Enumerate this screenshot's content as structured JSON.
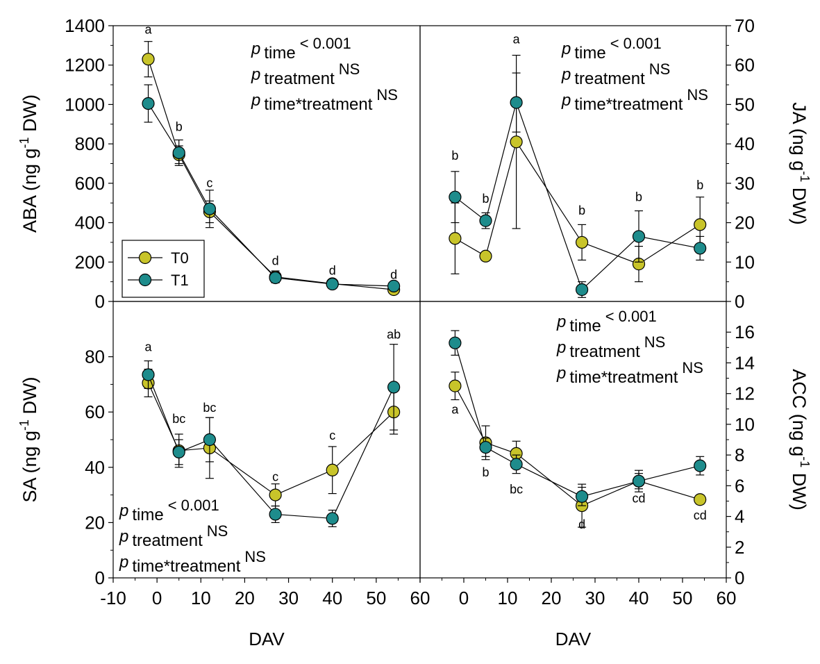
{
  "colors": {
    "t0_fill": "#C8C42A",
    "t1_fill": "#1E8C8C",
    "stroke": "#000000"
  },
  "legend": {
    "t0": "T0",
    "t1": "T1"
  },
  "x_axis": {
    "label": "DAV"
  },
  "chart_data": [
    {
      "type": "line",
      "position": "top-left",
      "ylabel": "ABA (ng g-1 DW)",
      "ylabel_parts": {
        "before": "ABA (ng g",
        "sup": "-1",
        "after": " DW)"
      },
      "xlim": [
        -10,
        60
      ],
      "ylim": [
        0,
        1400
      ],
      "xticks": [
        -10,
        0,
        10,
        20,
        30,
        40,
        50,
        60
      ],
      "yticks": [
        0,
        200,
        400,
        600,
        800,
        1000,
        1200,
        1400
      ],
      "series": [
        {
          "name": "T0",
          "x": [
            -2,
            5,
            12,
            27,
            40,
            54
          ],
          "y": [
            1230,
            745,
            455,
            125,
            90,
            60
          ],
          "err": [
            90,
            45,
            55,
            30,
            15,
            10
          ]
        },
        {
          "name": "T1",
          "x": [
            -2,
            5,
            12,
            27,
            40,
            54
          ],
          "y": [
            1005,
            755,
            470,
            120,
            88,
            78
          ],
          "err": [
            95,
            65,
            95,
            25,
            10,
            10
          ]
        }
      ],
      "letters": [
        {
          "x": -2,
          "y": 1360,
          "text": "a"
        },
        {
          "x": 5,
          "y": 865,
          "text": "b"
        },
        {
          "x": 12,
          "y": 580,
          "text": "c"
        },
        {
          "x": 27,
          "y": 185,
          "text": "d"
        },
        {
          "x": 40,
          "y": 135,
          "text": "d"
        },
        {
          "x": 54,
          "y": 115,
          "text": "d"
        }
      ],
      "stats": {
        "position": "top-right",
        "lines": [
          {
            "sub": "time",
            "sup": "< 0.001"
          },
          {
            "sub": "treatment",
            "sup": "NS"
          },
          {
            "sub": "time*treatment",
            "sup": "NS"
          }
        ]
      }
    },
    {
      "type": "line",
      "position": "top-right",
      "ylabel": "JA (ng g-1 DW)",
      "ylabel_parts": {
        "before": "JA (ng g",
        "sup": "-1",
        "after": " DW)"
      },
      "xlim": [
        -10,
        60
      ],
      "ylim": [
        0,
        70
      ],
      "xticks": [
        -10,
        0,
        10,
        20,
        30,
        40,
        50,
        60
      ],
      "yticks": [
        0,
        10,
        20,
        30,
        40,
        50,
        60,
        70
      ],
      "series": [
        {
          "name": "T0",
          "x": [
            -2,
            5,
            12,
            27,
            40,
            54
          ],
          "y": [
            16,
            11.5,
            40.5,
            15,
            9.5,
            19.5
          ],
          "err": [
            9,
            1,
            22,
            4.5,
            4.5,
            7
          ]
        },
        {
          "name": "T1",
          "x": [
            -2,
            5,
            12,
            27,
            40,
            54
          ],
          "y": [
            26.5,
            20.5,
            50.5,
            3,
            16.5,
            13.5
          ],
          "err": [
            6.5,
            2,
            7.5,
            2,
            6.5,
            3
          ]
        }
      ],
      "letters": [
        {
          "x": -2,
          "y": 36,
          "text": "b"
        },
        {
          "x": 5,
          "y": 25,
          "text": "b"
        },
        {
          "x": 12,
          "y": 65.5,
          "text": "a"
        },
        {
          "x": 27,
          "y": 22,
          "text": "b"
        },
        {
          "x": 40,
          "y": 25.5,
          "text": "b"
        },
        {
          "x": 54,
          "y": 28.5,
          "text": "b"
        }
      ],
      "stats": {
        "position": "top-right",
        "lines": [
          {
            "sub": "time",
            "sup": "< 0.001"
          },
          {
            "sub": "treatment",
            "sup": "NS"
          },
          {
            "sub": "time*treatment",
            "sup": "NS"
          }
        ]
      }
    },
    {
      "type": "line",
      "position": "bottom-left",
      "ylabel": "SA (ng g-1 DW)",
      "ylabel_parts": {
        "before": "SA (ng g",
        "sup": "-1",
        "after": " DW)"
      },
      "xlim": [
        -10,
        60
      ],
      "ylim": [
        0,
        100
      ],
      "xticks": [
        -10,
        0,
        10,
        20,
        30,
        40,
        50,
        60
      ],
      "yticks": [
        0,
        20,
        40,
        60,
        80
      ],
      "series": [
        {
          "name": "T0",
          "x": [
            -2,
            5,
            12,
            27,
            40,
            54
          ],
          "y": [
            70.5,
            46,
            47,
            30,
            39,
            60
          ],
          "err": [
            5,
            6,
            11,
            4,
            8.5,
            8
          ]
        },
        {
          "name": "T1",
          "x": [
            -2,
            5,
            12,
            27,
            40,
            54
          ],
          "y": [
            73.5,
            45.5,
            50,
            23,
            21.5,
            69
          ],
          "err": [
            5,
            4.5,
            8,
            3,
            3,
            15.5
          ]
        }
      ],
      "letters": [
        {
          "x": -2,
          "y": 82,
          "text": "a"
        },
        {
          "x": 5,
          "y": 56,
          "text": "bc"
        },
        {
          "x": 12,
          "y": 60,
          "text": "bc"
        },
        {
          "x": 27,
          "y": 35,
          "text": "c"
        },
        {
          "x": 40,
          "y": 50,
          "text": "c"
        },
        {
          "x": 54,
          "y": 86.5,
          "text": "ab"
        }
      ],
      "stats": {
        "position": "bottom-left",
        "lines": [
          {
            "sub": "time",
            "sup": "< 0.001"
          },
          {
            "sub": "treatment",
            "sup": "NS"
          },
          {
            "sub": "time*treatment",
            "sup": "NS"
          }
        ]
      }
    },
    {
      "type": "line",
      "position": "bottom-right",
      "ylabel": "ACC (ng g-1 DW)",
      "ylabel_parts": {
        "before": "ACC (ng g",
        "sup": "-1",
        "after": " DW)"
      },
      "xlim": [
        -10,
        60
      ],
      "ylim": [
        0,
        18
      ],
      "xticks": [
        -10,
        0,
        10,
        20,
        30,
        40,
        50,
        60
      ],
      "yticks": [
        0,
        2,
        4,
        6,
        8,
        10,
        12,
        14,
        16
      ],
      "series": [
        {
          "name": "T0",
          "x": [
            -2,
            5,
            12,
            27,
            40,
            54
          ],
          "y": [
            12.5,
            8.8,
            8.1,
            4.7,
            6.3,
            5.1
          ],
          "err": [
            0.9,
            1.1,
            0.8,
            1.4,
            0.7,
            0.3
          ]
        },
        {
          "name": "T1",
          "x": [
            -2,
            5,
            12,
            27,
            40,
            54
          ],
          "y": [
            15.3,
            8.5,
            7.4,
            5.3,
            6.3,
            7.3
          ],
          "err": [
            0.8,
            0.6,
            0.6,
            0.6,
            0.5,
            0.6
          ]
        }
      ],
      "letters": [
        {
          "x": -2,
          "y": 10.7,
          "text": "a"
        },
        {
          "x": 5,
          "y": 6.6,
          "text": "b"
        },
        {
          "x": 12,
          "y": 5.5,
          "text": "bc"
        },
        {
          "x": 27,
          "y": 3.2,
          "text": "d"
        },
        {
          "x": 40,
          "y": 4.9,
          "text": "cd"
        },
        {
          "x": 54,
          "y": 3.8,
          "text": "cd"
        }
      ],
      "stats": {
        "position": "top-right",
        "lines": [
          {
            "sub": "time",
            "sup": "< 0.001"
          },
          {
            "sub": "treatment",
            "sup": "NS"
          },
          {
            "sub": "time*treatment",
            "sup": "NS"
          }
        ]
      }
    }
  ]
}
